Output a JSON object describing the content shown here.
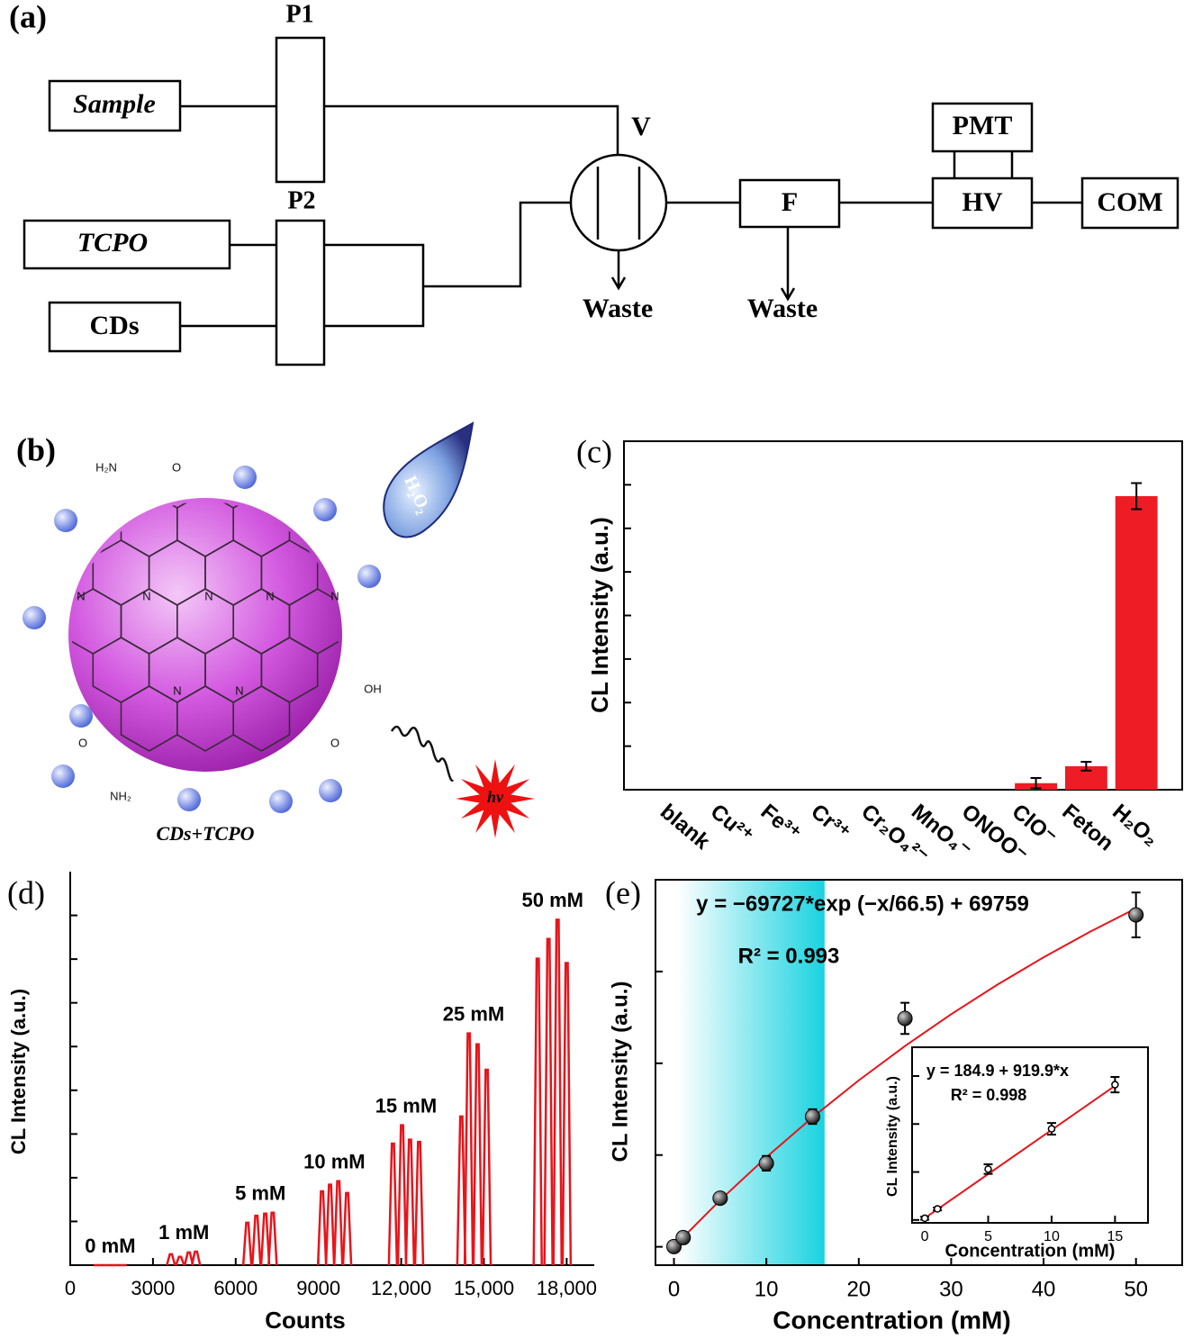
{
  "panel_a": {
    "label": "(a)",
    "sample": "Sample",
    "tcpo": "TCPO",
    "cds": "CDs",
    "p1": "P1",
    "p2": "P2",
    "valve": "V",
    "waste_1": "Waste",
    "waste_2": "Waste",
    "filter": "F",
    "pmt": "PMT",
    "hv": "HV",
    "com": "COM"
  },
  "panel_b": {
    "label": "(b)",
    "caption": "CDs+TCPO",
    "drop": "H₂O₂",
    "light": "hν",
    "atoms": [
      "H₂N",
      "O",
      "N",
      "N",
      "N",
      "N",
      "N",
      "N",
      "N",
      "OH",
      "O",
      "O",
      "NH₂"
    ]
  },
  "chart_data": [
    {
      "type": "bar",
      "label": "(c)",
      "ylabel": "CL Intensity (a.u.)",
      "categories": [
        "blank",
        "Cu²⁺",
        "Fe³⁺",
        "Cr³⁺",
        "Cr₂O₄²⁻",
        "MnO₄⁻",
        "ONOO⁻",
        "ClO⁻",
        "Feton",
        "H₂O₂"
      ],
      "values": [
        0,
        0,
        0,
        0,
        0,
        0,
        0,
        0.15,
        0.54,
        6.74
      ],
      "errors": [
        0,
        0,
        0,
        0,
        0,
        0,
        0,
        0.12,
        0.1,
        0.3
      ],
      "color": "#ee1c25",
      "ylim": [
        0,
        8
      ],
      "yticks": [
        1,
        2,
        3,
        4,
        5,
        6,
        7
      ]
    },
    {
      "type": "peaks",
      "label": "(d)",
      "xlabel": "Counts",
      "ylabel": "CL Intensity (a.u.)",
      "color": "#e8141b",
      "xlim": [
        0,
        19000
      ],
      "ylim": [
        0,
        9
      ],
      "xticks": [
        0,
        3000,
        6000,
        9000,
        {
          "value": 12000,
          "label": "12,000"
        },
        {
          "value": 15000,
          "label": "15,000"
        },
        {
          "value": 18000,
          "label": "18,000"
        }
      ],
      "yticks": [
        1,
        2,
        3,
        4,
        5,
        6,
        7,
        8
      ],
      "groups": [
        {
          "name": "0 mM",
          "x": [
            1000,
            1300,
            1600,
            1900
          ],
          "values": [
            0,
            0,
            0,
            0
          ]
        },
        {
          "name": "1 mM",
          "x": [
            3650,
            3980,
            4300,
            4560
          ],
          "values": [
            0.25,
            0.19,
            0.29,
            0.31
          ]
        },
        {
          "name": "5 mM",
          "x": [
            6420,
            6750,
            7070,
            7340
          ],
          "values": [
            0.97,
            1.13,
            1.18,
            1.2
          ]
        },
        {
          "name": "10 mM",
          "x": [
            9130,
            9420,
            9720,
            10040
          ],
          "values": [
            1.69,
            1.84,
            1.92,
            1.65
          ]
        },
        {
          "name": "15 mM",
          "x": [
            11700,
            12030,
            12320,
            12650
          ],
          "values": [
            2.78,
            3.2,
            2.87,
            2.82
          ]
        },
        {
          "name": "25 mM",
          "x": [
            14180,
            14450,
            14770,
            15100
          ],
          "values": [
            3.4,
            5.3,
            5.05,
            4.47
          ]
        },
        {
          "name": "50 mM",
          "x": [
            16950,
            17340,
            17670,
            18000
          ],
          "values": [
            7.01,
            7.46,
            7.9,
            6.91
          ]
        }
      ]
    },
    {
      "type": "scatter",
      "label": "(e)",
      "xlabel": "Concentration (mM)",
      "ylabel": "CL Intensity (a.u.)",
      "annotations": [
        "y = −69727*exp (−x/66.5) + 69759",
        "R² = 0.993"
      ],
      "x": [
        0,
        1,
        5,
        10,
        15,
        25,
        50
      ],
      "values": [
        30,
        1000,
        5300,
        9100,
        14190,
        24890,
        36170
      ],
      "errors": [
        300,
        400,
        400,
        800,
        800,
        1700,
        2450
      ],
      "fit": {
        "color": "#e8141b",
        "x": [
          0,
          5,
          10,
          15,
          20,
          25,
          30,
          35,
          40,
          45,
          50
        ],
        "values": [
          32,
          5083,
          9767,
          14111,
          18142,
          21881,
          25350,
          28566,
          31550,
          34318,
          36885
        ]
      },
      "highlight_x": [
        0.4,
        16.3
      ],
      "highlight_color": "#19d3e0",
      "xlim": [
        -2,
        55
      ],
      "ylim": [
        -2000,
        40000
      ],
      "xticks": [
        0,
        10,
        20,
        30,
        40,
        50
      ],
      "yticks": [
        0,
        10000,
        20000,
        30000,
        40000
      ]
    },
    {
      "type": "scatter",
      "xlabel": "Concentration (mM)",
      "ylabel": "CL Intensity (a.u.)",
      "annotations": [
        "y = 184.9 + 919.9*x",
        "R² = 0.998"
      ],
      "x": [
        0,
        1,
        5,
        10,
        15
      ],
      "values": [
        180,
        1150,
        5300,
        9500,
        14100
      ],
      "errors": [
        150,
        150,
        500,
        600,
        800
      ],
      "fit": {
        "color": "#e8141b",
        "x": [
          0,
          15
        ],
        "values": [
          184.9,
          13983.4
        ]
      },
      "xlim": [
        -1,
        17.6
      ],
      "ylim": [
        -300,
        18000
      ],
      "xticks": [
        0,
        5,
        10,
        15
      ],
      "yticks": [
        0,
        5000,
        10000,
        15000
      ]
    }
  ]
}
